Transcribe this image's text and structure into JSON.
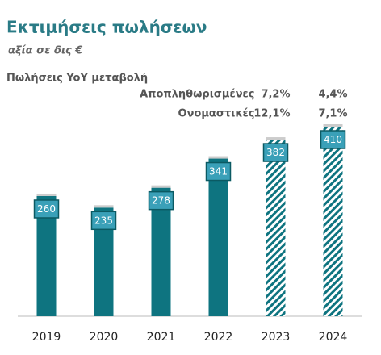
{
  "chart_data": {
    "type": "bar",
    "title": "Εκτιμήσεις πωλήσεων",
    "subtitle": "αξία σε δις €",
    "categories": [
      "2019",
      "2020",
      "2021",
      "2022",
      "2023",
      "2024"
    ],
    "values": [
      260,
      235,
      278,
      341,
      382,
      410
    ],
    "color": "#0e7480",
    "label_color": "#3aa0b8",
    "pattern": [
      "solid",
      "solid",
      "solid",
      "solid",
      "hatched",
      "hatched"
    ],
    "annotations": {
      "header": "Πωλήσεις YoY μεταβολή",
      "rows": [
        {
          "label": "Αποπληθωρισμένες",
          "values": [
            "7,2%",
            "4,4%"
          ]
        },
        {
          "label": "Ονομαστικές",
          "values": [
            "12,1%",
            "7,1%"
          ]
        }
      ]
    }
  }
}
